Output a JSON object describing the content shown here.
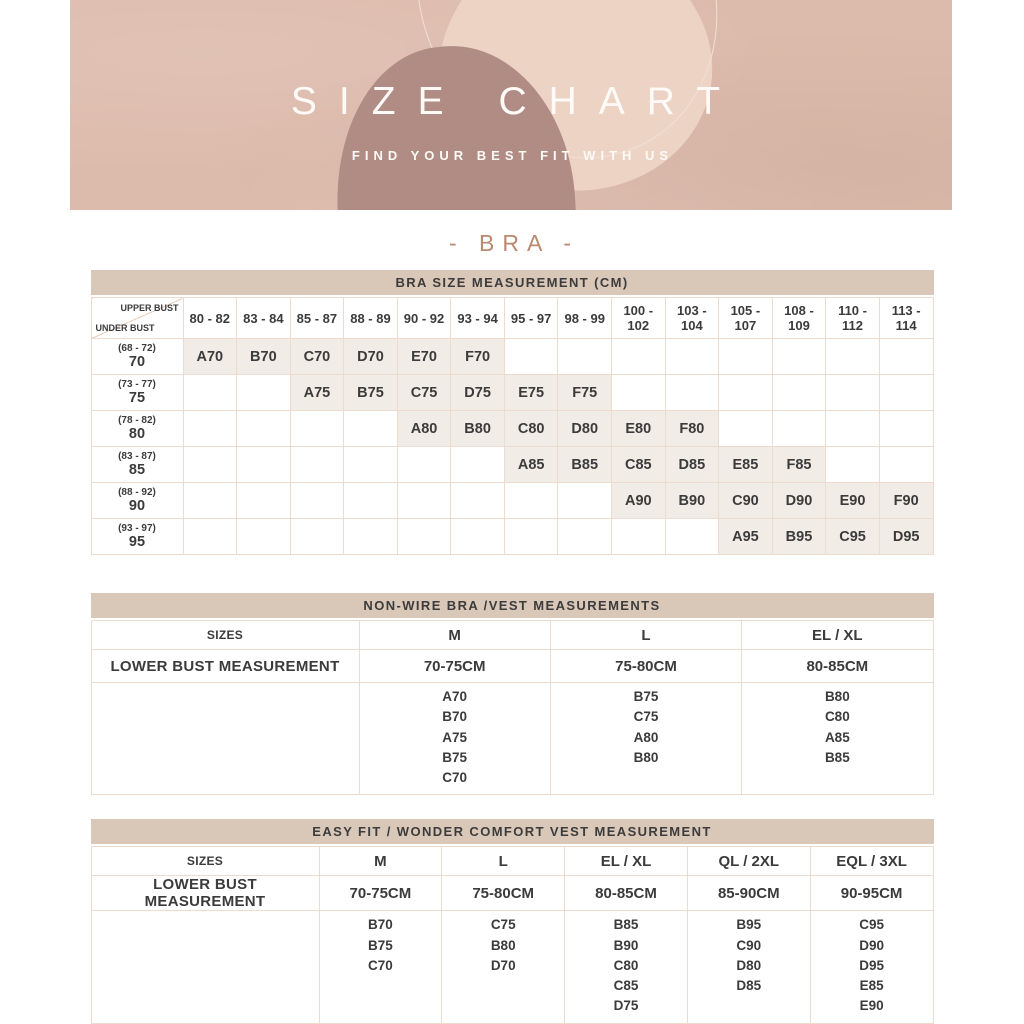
{
  "banner": {
    "title": "SIZE CHART",
    "subtitle": "FIND YOUR BEST FIT WITH US"
  },
  "section_heading": "- BRA -",
  "bra_table": {
    "title": "BRA SIZE MEASUREMENT (CM)",
    "corner": {
      "top": "UPPER BUST",
      "bottom": "UNDER BUST"
    },
    "columns": [
      "80 - 82",
      "83 - 84",
      "85 - 87",
      "88 - 89",
      "90 - 92",
      "93 - 94",
      "95 - 97",
      "98 - 99",
      "100 - 102",
      "103 - 104",
      "105 - 107",
      "108 - 109",
      "110 - 112",
      "113 - 114"
    ],
    "rows": [
      {
        "range": "(68 - 72)",
        "size": "70",
        "cells": [
          "A70",
          "B70",
          "C70",
          "D70",
          "E70",
          "F70",
          "",
          "",
          "",
          "",
          "",
          "",
          "",
          ""
        ]
      },
      {
        "range": "(73 - 77)",
        "size": "75",
        "cells": [
          "",
          "",
          "A75",
          "B75",
          "C75",
          "D75",
          "E75",
          "F75",
          "",
          "",
          "",
          "",
          "",
          ""
        ]
      },
      {
        "range": "(78 - 82)",
        "size": "80",
        "cells": [
          "",
          "",
          "",
          "",
          "A80",
          "B80",
          "C80",
          "D80",
          "E80",
          "F80",
          "",
          "",
          "",
          ""
        ]
      },
      {
        "range": "(83 - 87)",
        "size": "85",
        "cells": [
          "",
          "",
          "",
          "",
          "",
          "",
          "A85",
          "B85",
          "C85",
          "D85",
          "E85",
          "F85",
          "",
          ""
        ]
      },
      {
        "range": "(88 - 92)",
        "size": "90",
        "cells": [
          "",
          "",
          "",
          "",
          "",
          "",
          "",
          "",
          "A90",
          "B90",
          "C90",
          "D90",
          "E90",
          "F90"
        ]
      },
      {
        "range": "(93 - 97)",
        "size": "95",
        "cells": [
          "",
          "",
          "",
          "",
          "",
          "",
          "",
          "",
          "",
          "",
          "A95",
          "B95",
          "C95",
          "D95"
        ]
      }
    ]
  },
  "nonwire_table": {
    "title": "NON-WIRE BRA /VEST MEASUREMENTS",
    "row_labels": [
      "SIZES",
      "LOWER BUST MEASUREMENT"
    ],
    "columns": [
      {
        "size": "M",
        "bust": "70-75CM",
        "cups": [
          "A70",
          "B70",
          "A75",
          "B75",
          "C70"
        ]
      },
      {
        "size": "L",
        "bust": "75-80CM",
        "cups": [
          "B75",
          "C75",
          "A80",
          "B80"
        ]
      },
      {
        "size": "EL / XL",
        "bust": "80-85CM",
        "cups": [
          "B80",
          "C80",
          "A85",
          "B85"
        ]
      }
    ]
  },
  "easyfit_table": {
    "title": "EASY FIT / WONDER COMFORT VEST MEASUREMENT",
    "row_labels": [
      "SIZES",
      "LOWER BUST MEASUREMENT"
    ],
    "columns": [
      {
        "size": "M",
        "bust": "70-75CM",
        "cups": [
          "B70",
          "B75",
          "C70"
        ]
      },
      {
        "size": "L",
        "bust": "75-80CM",
        "cups": [
          "C75",
          "B80",
          "D70"
        ]
      },
      {
        "size": "EL / XL",
        "bust": "80-85CM",
        "cups": [
          "B85",
          "B90",
          "C80",
          "C85",
          "D75"
        ]
      },
      {
        "size": "QL / 2XL",
        "bust": "85-90CM",
        "cups": [
          "B95",
          "C90",
          "D80",
          "D85"
        ]
      },
      {
        "size": "EQL / 3XL",
        "bust": "90-95CM",
        "cups": [
          "C95",
          "D90",
          "D95",
          "E85",
          "E90"
        ]
      }
    ]
  },
  "colors": {
    "banner_bg": "#ddbbac",
    "blob_dark": "#b08c84",
    "blob_light": "#ecd3c4",
    "blob_line": "#f2e0d5",
    "bar_bg": "#d9c7b8",
    "cell_fill": "#f2ece6",
    "border": "#eddbcd",
    "text_dark": "#3b3b3b",
    "accent": "#bb8970",
    "white_text": "#fdfaf7"
  }
}
